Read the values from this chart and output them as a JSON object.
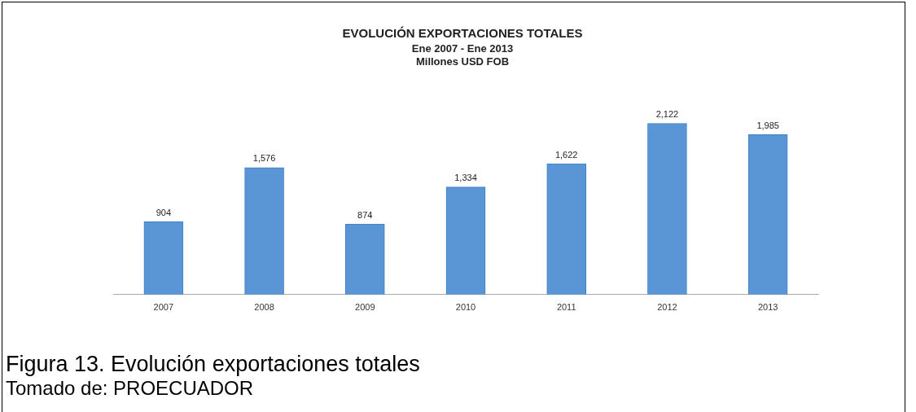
{
  "chart_data": {
    "type": "bar",
    "title": "EVOLUCIÓN EXPORTACIONES TOTALES",
    "subtitle": "Ene 2007 - Ene 2013\nMillones USD FOB",
    "categories": [
      "2007",
      "2008",
      "2009",
      "2010",
      "2011",
      "2012",
      "2013"
    ],
    "values": [
      904,
      1576,
      874,
      1334,
      1622,
      2122,
      1985
    ],
    "value_labels": [
      "904",
      "1,576",
      "874",
      "1,334",
      "1,622",
      "2,122",
      "1,985"
    ],
    "color": "#5a96d6",
    "relative": false,
    "grid": false,
    "legend": false,
    "annotations": [
      "Figura 13. Evolución exportaciones totales",
      "Tomado de: PROECUADOR"
    ]
  }
}
